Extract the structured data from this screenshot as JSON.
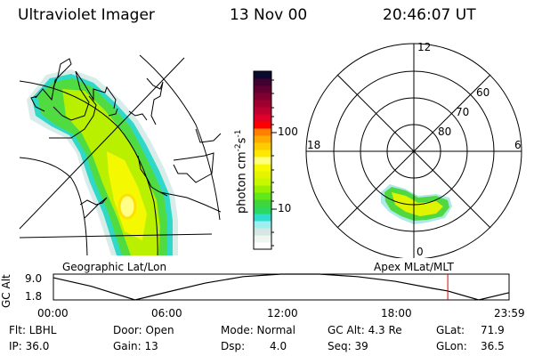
{
  "header": {
    "instrument": "Ultraviolet Imager",
    "date": "13 Nov 00",
    "time": "20:46:07 UT"
  },
  "geo_map": {
    "label": "Geographic Lat/Lon"
  },
  "colorbar": {
    "unit": "photon cm",
    "exp1": "-2",
    "mid": "s",
    "exp2": "-1",
    "ticks": [
      "100",
      "10"
    ],
    "colors": [
      "#ffffff",
      "#eef6f0",
      "#d6e6e2",
      "#9ef0f0",
      "#2edcd0",
      "#2ad860",
      "#3ed63a",
      "#60e818",
      "#98f000",
      "#c8f800",
      "#e4f400",
      "#f8f800",
      "#ffff80",
      "#ffe800",
      "#ffcc00",
      "#ffaa00",
      "#ff8000",
      "#ff0000",
      "#e0002a",
      "#c00030",
      "#a00030",
      "#800030",
      "#600030",
      "#400030",
      "#0a0a30"
    ]
  },
  "polar_plot": {
    "label": "Apex MLat/MLT",
    "mlt_labels": {
      "top": "12",
      "left": "18",
      "right": "6",
      "bottom": "0"
    },
    "lat_labels": [
      "60",
      "70",
      "80"
    ]
  },
  "altitude_plot": {
    "ylabel": "GC Alt",
    "yticks": [
      "9.0",
      "1.8"
    ],
    "xticks": [
      "00:00",
      "06:00",
      "12:00",
      "18:00",
      "23:59"
    ],
    "current_time_hours": 20.77,
    "marker_color": "#e00000",
    "series_hours": [
      0,
      2,
      4.3,
      6,
      8,
      10,
      12,
      14,
      16,
      18,
      20,
      20.77,
      22.4,
      23.98
    ],
    "series_alt_re": [
      8.0,
      5.6,
      1.8,
      4.0,
      6.5,
      8.3,
      9.0,
      9.0,
      8.3,
      7.0,
      5.0,
      4.3,
      1.8,
      3.8
    ]
  },
  "status": {
    "filter": "Flt: LBHL",
    "ip": "IP: 36.0",
    "door": "Door: Open",
    "gain": "Gain: 13",
    "mode": "Mode: Normal",
    "dsp_label": "Dsp:",
    "dsp_value": "4.0",
    "gc_alt": "GC Alt: 4.3 Re",
    "seq": "Seq: 39",
    "glat_label": "GLat:",
    "glat_value": "71.9",
    "glon_label": "GLon:",
    "glon_value": "36.5"
  }
}
